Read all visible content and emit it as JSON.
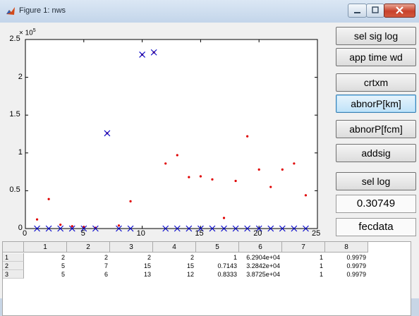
{
  "window": {
    "title": "Figure 1: nws"
  },
  "buttons": [
    {
      "label": "sel sig log"
    },
    {
      "label": "app time wd"
    },
    {
      "label": "crtxm"
    },
    {
      "label": "abnorP[km]",
      "active": true
    },
    {
      "label": "abnorP[fcm]"
    },
    {
      "label": "addsig"
    },
    {
      "label": "sel log"
    }
  ],
  "value_display": "0.30749",
  "fecdata_label": "fecdata",
  "colors": {
    "red_series": "#e00000",
    "blue_series": "#0000c8",
    "active_button": "#bfe2f8"
  },
  "chart_data": {
    "type": "scatter",
    "title": "",
    "xlabel": "",
    "ylabel": "",
    "y_multiplier": "× 10^5",
    "y_multiplier_base": "× 10",
    "y_multiplier_exp": "5",
    "xlim": [
      0,
      25
    ],
    "ylim": [
      0,
      2.5
    ],
    "xticks": [
      "0",
      "5",
      "10",
      "15",
      "20",
      "25"
    ],
    "yticks": [
      "0",
      "0.5",
      "1",
      "1.5",
      "2",
      "2.5"
    ],
    "grid": false,
    "series": [
      {
        "marker": "dot",
        "color": "#e00000",
        "x": [
          1,
          2,
          3,
          4,
          5,
          6,
          7,
          8,
          9,
          10,
          11,
          12,
          13,
          14,
          15,
          16,
          17,
          18,
          19,
          20,
          21,
          22,
          23,
          24
        ],
        "y": [
          0.12,
          0.39,
          0.05,
          0.03,
          0.02,
          0.01,
          1.26,
          0.04,
          0.36,
          2.3,
          2.33,
          0.86,
          0.97,
          0.68,
          0.69,
          0.65,
          0.14,
          0.63,
          1.22,
          0.78,
          0.55,
          0.78,
          0.86,
          0.44
        ]
      },
      {
        "marker": "x",
        "color": "#0000c8",
        "x": [
          1,
          2,
          3,
          4,
          5,
          6,
          7,
          8,
          9,
          10,
          11,
          12,
          13,
          14,
          15,
          16,
          17,
          18,
          19,
          20,
          21,
          22,
          23,
          24
        ],
        "y": [
          0,
          0,
          0,
          0,
          0,
          0,
          1.26,
          0,
          0,
          2.3,
          2.33,
          0,
          0,
          0,
          0,
          0,
          0,
          0,
          0,
          0,
          0,
          0,
          0,
          0
        ]
      }
    ]
  },
  "table": {
    "columns": [
      "1",
      "2",
      "3",
      "4",
      "5",
      "6",
      "7",
      "8"
    ],
    "rows": [
      {
        "label": "1",
        "cells": [
          "2",
          "2",
          "2",
          "2",
          "1",
          "6.2904e+04",
          "1",
          "0.9979"
        ]
      },
      {
        "label": "2",
        "cells": [
          "5",
          "7",
          "15",
          "15",
          "0.7143",
          "3.2842e+04",
          "1",
          "0.9979"
        ]
      },
      {
        "label": "3",
        "cells": [
          "5",
          "6",
          "13",
          "12",
          "0.8333",
          "3.8725e+04",
          "1",
          "0.9979"
        ]
      }
    ]
  }
}
